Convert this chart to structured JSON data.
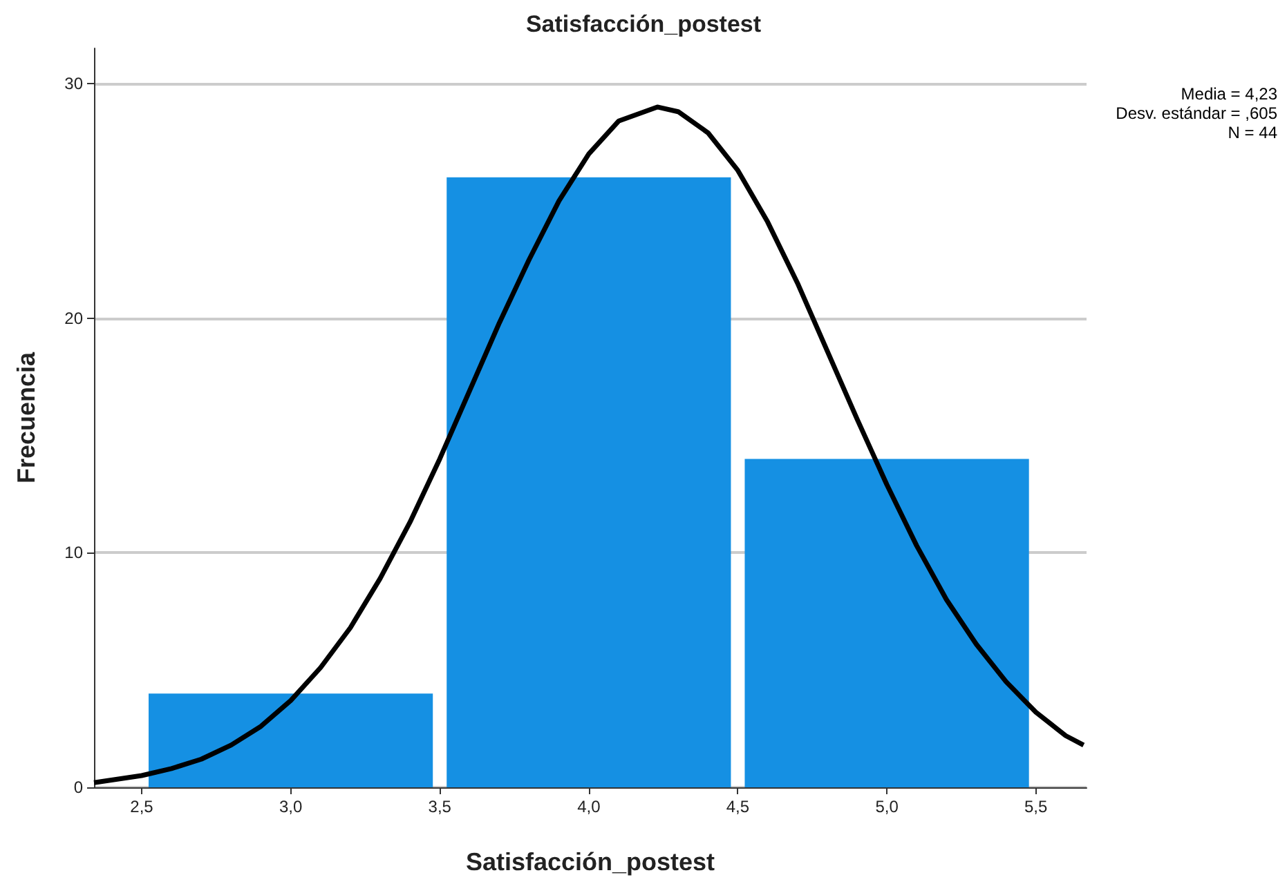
{
  "chart_data": {
    "type": "histogram",
    "title": "Satisfacción_postest",
    "xlabel": "Satisfacción_postest",
    "ylabel": "Frecuencia",
    "bins": [
      2.5,
      3.5,
      4.5,
      5.5
    ],
    "values": [
      4,
      26,
      14
    ],
    "color": "#1590e3",
    "series": [
      {
        "type": "line",
        "color": "#000000",
        "x": [
          2.34,
          2.5,
          2.6,
          2.7,
          2.8,
          2.9,
          3.0,
          3.1,
          3.2,
          3.3,
          3.4,
          3.5,
          3.6,
          3.7,
          3.8,
          3.9,
          4.0,
          4.1,
          4.23,
          4.3,
          4.4,
          4.5,
          4.6,
          4.7,
          4.8,
          4.9,
          5.0,
          5.1,
          5.2,
          5.3,
          5.4,
          5.5,
          5.6,
          5.66
        ],
        "values": [
          0.2,
          0.5,
          0.8,
          1.2,
          1.8,
          2.6,
          3.7,
          5.1,
          6.8,
          8.9,
          11.3,
          14.0,
          16.9,
          19.8,
          22.5,
          25.0,
          27.0,
          28.4,
          29.0,
          28.8,
          27.9,
          26.3,
          24.1,
          21.5,
          18.6,
          15.7,
          12.9,
          10.3,
          8.0,
          6.1,
          4.5,
          3.2,
          2.2,
          1.8
        ]
      }
    ],
    "xlim": [
      2.34,
      5.67
    ],
    "ylim": [
      0,
      31.5
    ],
    "xticks": [
      {
        "value": 2.5,
        "label": "2,5"
      },
      {
        "value": 3.0,
        "label": "3,0"
      },
      {
        "value": 3.5,
        "label": "3,5"
      },
      {
        "value": 4.0,
        "label": "4,0"
      },
      {
        "value": 4.5,
        "label": "4,5"
      },
      {
        "value": 5.0,
        "label": "5,0"
      },
      {
        "value": 5.5,
        "label": "5,5"
      }
    ],
    "yticks": [
      0,
      10,
      20,
      30
    ],
    "grid": "y",
    "marker": "none",
    "annotations": [
      "Media = 4,23",
      "Desv. estándar = ,605",
      "N = 44"
    ]
  }
}
